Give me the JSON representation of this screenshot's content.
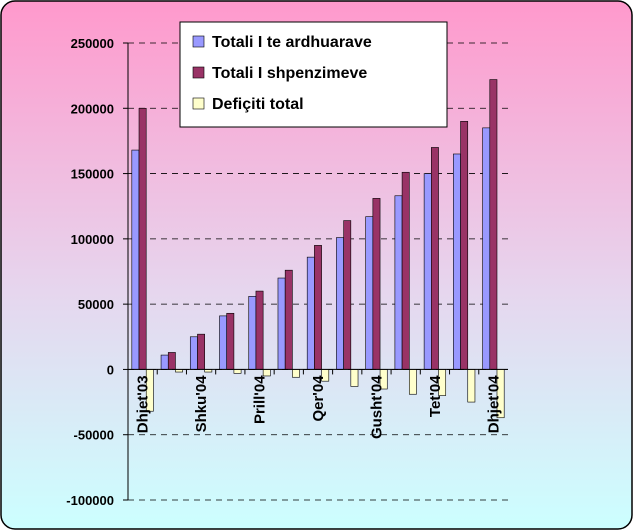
{
  "chart_data": {
    "type": "bar",
    "categories": [
      "Dhjet'03",
      null,
      "Shku'04",
      null,
      "Prill'04",
      null,
      "Qer'04",
      null,
      "Gusht'04",
      null,
      "Tet'04",
      null,
      "Dhjet'04"
    ],
    "series": [
      {
        "name": "Totali I te ardhuarave",
        "color": "#9999ff",
        "values": [
          168000,
          11000,
          25000,
          41000,
          56000,
          70000,
          86000,
          101000,
          117000,
          133000,
          150000,
          165000,
          185000
        ]
      },
      {
        "name": "Totali I shpenzimeve",
        "color": "#993366",
        "values": [
          200000,
          13000,
          27000,
          43000,
          60000,
          76000,
          95000,
          114000,
          131000,
          151000,
          170000,
          190000,
          222000
        ]
      },
      {
        "name": "Defiçiti total",
        "color": "#ffffcc",
        "values": [
          -32000,
          -2000,
          -2000,
          -3000,
          -5000,
          -6000,
          -9000,
          -13000,
          -15000,
          -19000,
          -20000,
          -25000,
          -37000
        ]
      }
    ],
    "ylim": [
      -100000,
      250000
    ],
    "yticks": [
      -100000,
      -50000,
      0,
      50000,
      100000,
      150000,
      200000,
      250000
    ],
    "grid": true,
    "legend": "top"
  }
}
